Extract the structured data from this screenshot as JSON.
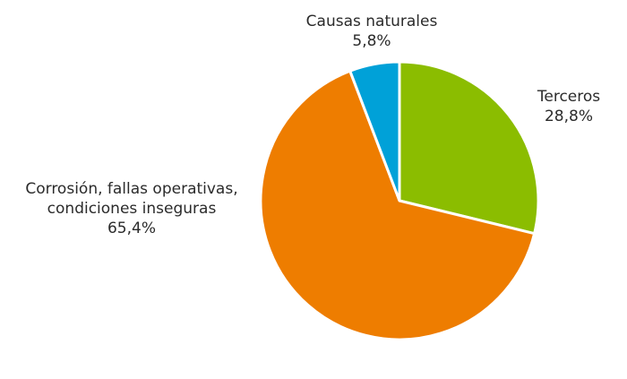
{
  "chart_data": {
    "type": "pie",
    "start_angle_deg": 0,
    "direction": "clockwise",
    "slices": [
      {
        "key": "terceros",
        "label_lines": [
          "Terceros"
        ],
        "pct_text": "28,8%",
        "value": 28.8,
        "color": "#8bbd00"
      },
      {
        "key": "corrosion",
        "label_lines": [
          "Corrosión, fallas operativas,",
          "condiciones inseguras"
        ],
        "pct_text": "65,4%",
        "value": 65.4,
        "color": "#ee7d00"
      },
      {
        "key": "naturales",
        "label_lines": [
          "Causas naturales"
        ],
        "pct_text": "5,8%",
        "value": 5.8,
        "color": "#00a1d8"
      }
    ]
  }
}
